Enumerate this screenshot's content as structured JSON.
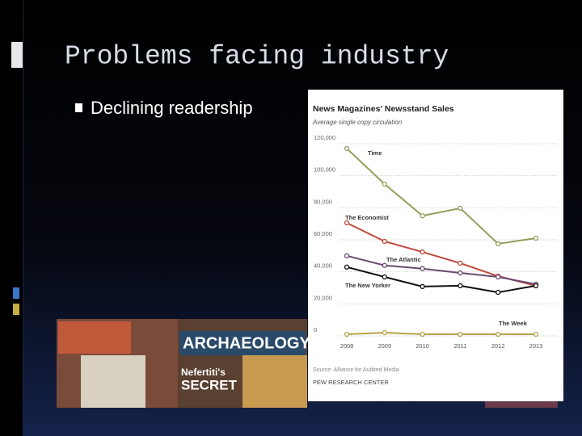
{
  "slide": {
    "title": "Problems facing industry",
    "bullets": [
      "Declining readership"
    ]
  },
  "photo_texts": [
    "ARCHAEOLOGY",
    "Nefertiti's",
    "SECRET"
  ],
  "chart_data": {
    "type": "line",
    "title": "News Magazines' Newsstand Sales",
    "subtitle": "Average single copy circulation",
    "source": "Source: Alliance for Audited Media",
    "credit": "PEW RESEARCH CENTER",
    "x": [
      2008,
      2009,
      2010,
      2011,
      2012,
      2013
    ],
    "xlim": [
      2008,
      2013
    ],
    "ylim": [
      0,
      120000
    ],
    "yticks": [
      0,
      {
        "value": 20000,
        "label": "20,000"
      },
      {
        "value": 40000,
        "label": "40,000"
      },
      {
        "value": 60000,
        "label": "60,000"
      },
      {
        "value": 80000,
        "label": "80,000"
      },
      {
        "value": 100000,
        "label": "100,000"
      },
      {
        "value": 120000,
        "label": "120,000"
      }
    ],
    "grid": true,
    "series": [
      {
        "name": "Time",
        "color": "#8fa05a",
        "values": [
          117000,
          94800,
          75000,
          79700,
          57500,
          61000
        ]
      },
      {
        "name": "The Economist",
        "color": "#c0473a",
        "values": [
          70600,
          59000,
          52400,
          45400,
          37300,
          31300
        ]
      },
      {
        "name": "The Atlantic",
        "color": "#6a4a6e",
        "values": [
          50000,
          44000,
          42000,
          39300,
          36800,
          32300
        ]
      },
      {
        "name": "The New Yorker",
        "color": "#111111",
        "values": [
          43000,
          36800,
          30800,
          31300,
          27200,
          31300
        ]
      },
      {
        "name": "The Week",
        "color": "#b5a24a",
        "values": [
          1000,
          2000,
          1000,
          1000,
          1000,
          1000
        ]
      }
    ]
  }
}
